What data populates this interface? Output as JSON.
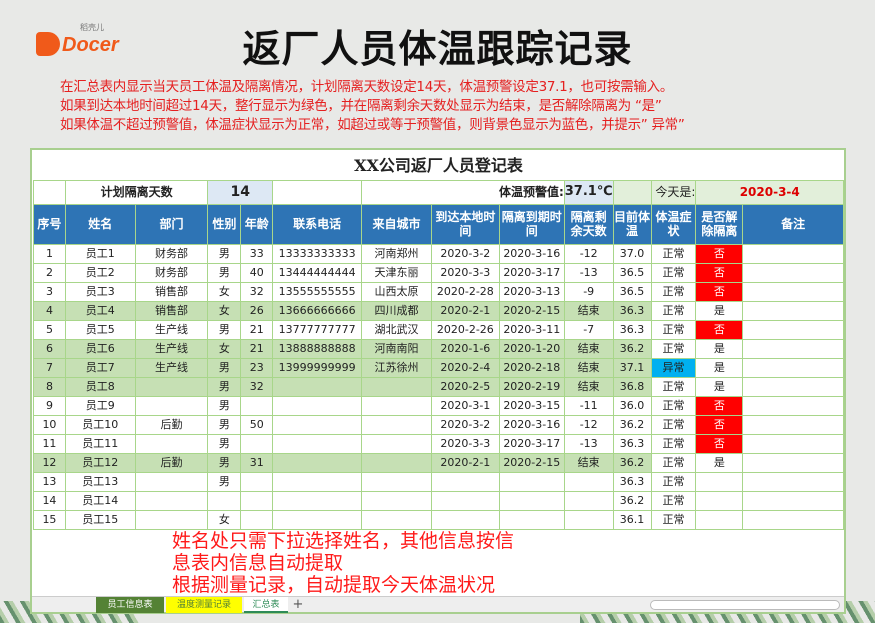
{
  "logo": {
    "text": "Docer",
    "sub": "稻壳儿"
  },
  "title": "返厂人员体温跟踪记录",
  "description": [
    "在汇总表内显示当天员工体温及隔离情况，计划隔离天数设定14天，体温预警设定37.1，也可按需输入。",
    "如果到达本地时间超过14天，整行显示为绿色，并在隔离剩余天数处显示为结束，是否解除隔离为 “是”",
    "如果体温不超过预警值，体温症状显示为正常，如超过或等于预警值，则背景色显示为蓝色，并提示” 异常”"
  ],
  "sheet": {
    "title": "XX公司返厂人员登记表",
    "plan_label": "计划隔离天数",
    "plan_value": "14",
    "warn_label": "体温预警值:",
    "warn_value": "37.1℃",
    "today_label": "今天是:",
    "today_value": "2020-3-4",
    "headers": [
      "序号",
      "姓名",
      "部门",
      "性别",
      "年龄",
      "联系电话",
      "来自城市",
      "到达本地时间",
      "隔离到期时间",
      "隔离剩余天数",
      "目前体温",
      "体温症状",
      "是否解除隔离",
      "备注"
    ],
    "rows": [
      [
        "1",
        "员工1",
        "财务部",
        "男",
        "33",
        "13333333333",
        "河南郑州",
        "2020-3-2",
        "2020-3-16",
        "-12",
        "37.0",
        "正常",
        "否",
        ""
      ],
      [
        "2",
        "员工2",
        "财务部",
        "男",
        "40",
        "13444444444",
        "天津东丽",
        "2020-3-3",
        "2020-3-17",
        "-13",
        "36.5",
        "正常",
        "否",
        ""
      ],
      [
        "3",
        "员工3",
        "销售部",
        "女",
        "32",
        "13555555555",
        "山西太原",
        "2020-2-28",
        "2020-3-13",
        "-9",
        "36.5",
        "正常",
        "否",
        ""
      ],
      [
        "4",
        "员工4",
        "销售部",
        "女",
        "26",
        "13666666666",
        "四川成都",
        "2020-2-1",
        "2020-2-15",
        "结束",
        "36.3",
        "正常",
        "是",
        ""
      ],
      [
        "5",
        "员工5",
        "生产线",
        "男",
        "21",
        "13777777777",
        "湖北武汉",
        "2020-2-26",
        "2020-3-11",
        "-7",
        "36.3",
        "正常",
        "否",
        ""
      ],
      [
        "6",
        "员工6",
        "生产线",
        "女",
        "21",
        "13888888888",
        "河南南阳",
        "2020-1-6",
        "2020-1-20",
        "结束",
        "36.2",
        "正常",
        "是",
        ""
      ],
      [
        "7",
        "员工7",
        "生产线",
        "男",
        "23",
        "13999999999",
        "江苏徐州",
        "2020-2-4",
        "2020-2-18",
        "结束",
        "37.1",
        "异常",
        "是",
        ""
      ],
      [
        "8",
        "员工8",
        "",
        "男",
        "32",
        "",
        "",
        "2020-2-5",
        "2020-2-19",
        "结束",
        "36.8",
        "正常",
        "是",
        ""
      ],
      [
        "9",
        "员工9",
        "",
        "男",
        "",
        "",
        "",
        "2020-3-1",
        "2020-3-15",
        "-11",
        "36.0",
        "正常",
        "否",
        ""
      ],
      [
        "10",
        "员工10",
        "后勤",
        "男",
        "50",
        "",
        "",
        "2020-3-2",
        "2020-3-16",
        "-12",
        "36.2",
        "正常",
        "否",
        ""
      ],
      [
        "11",
        "员工11",
        "",
        "男",
        "",
        "",
        "",
        "2020-3-3",
        "2020-3-17",
        "-13",
        "36.3",
        "正常",
        "否",
        ""
      ],
      [
        "12",
        "员工12",
        "后勤",
        "男",
        "31",
        "",
        "",
        "2020-2-1",
        "2020-2-15",
        "结束",
        "36.2",
        "正常",
        "是",
        ""
      ],
      [
        "13",
        "员工13",
        "",
        "男",
        "",
        "",
        "",
        "",
        "",
        "",
        "36.3",
        "正常",
        "",
        ""
      ],
      [
        "14",
        "员工14",
        "",
        "",
        "",
        "",
        "",
        "",
        "",
        "",
        "36.2",
        "正常",
        "",
        ""
      ],
      [
        "15",
        "员工15",
        "",
        "女",
        "",
        "",
        "",
        "",
        "",
        "",
        "36.1",
        "正常",
        "",
        ""
      ]
    ]
  },
  "overlay": [
    "姓名处只需下拉选择姓名，其他信息按信",
    "息表内信息自动提取",
    "根据测量记录，自动提取今天体温状况"
  ],
  "tabs": [
    {
      "label": "员工信息表",
      "bg": "#548235",
      "color": "#ffffff"
    },
    {
      "label": "温度测量记录",
      "bg": "#ffff00",
      "color": "#548235"
    },
    {
      "label": "汇总表",
      "bg": "#ffffff",
      "color": "#2e8b57"
    }
  ],
  "add_tab": "+",
  "colors": {
    "header": "#2e74b5",
    "green_row": "#c6e0b4",
    "not_released": "#ff0000",
    "abnormal": "#00b0f0",
    "note_text": "#e52020"
  }
}
